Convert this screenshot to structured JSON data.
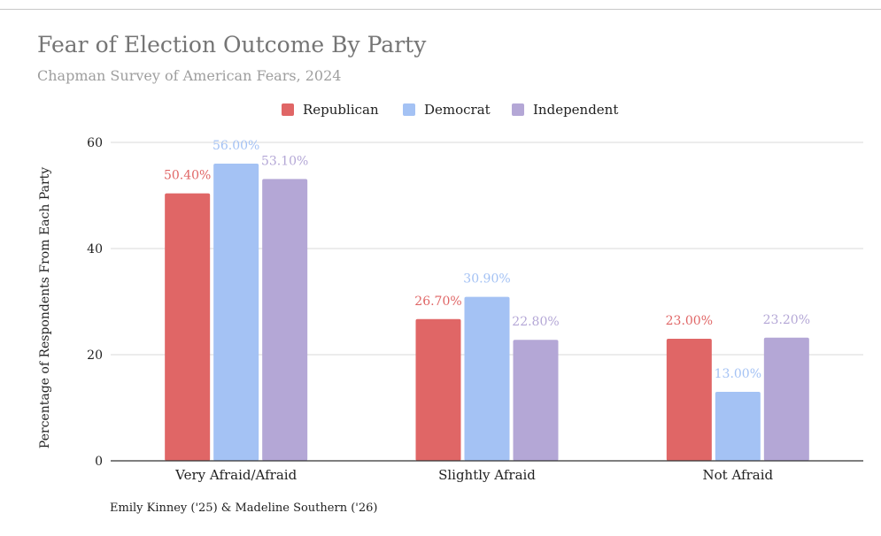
{
  "chart_data": {
    "type": "bar",
    "title": "Fear of Election Outcome By Party",
    "subtitle": "Chapman Survey of American Fears, 2024",
    "xlabel": "",
    "ylabel": "Percentage of Respondents From Each Party",
    "categories": [
      "Very Afraid/Afraid",
      "Slightly Afraid",
      "Not Afraid"
    ],
    "series": [
      {
        "name": "Republican",
        "color": "#e06666",
        "values": [
          50.4,
          26.7,
          23.0
        ],
        "labels": [
          "50.40%",
          "26.70%",
          "23.00%"
        ]
      },
      {
        "name": "Democrat",
        "color": "#a4c2f4",
        "values": [
          56.0,
          30.9,
          13.0
        ],
        "labels": [
          "56.00%",
          "30.90%",
          "13.00%"
        ]
      },
      {
        "name": "Independent",
        "color": "#b4a7d6",
        "values": [
          53.1,
          22.8,
          23.2
        ],
        "labels": [
          "53.10%",
          "22.80%",
          "23.20%"
        ]
      }
    ],
    "ylim": [
      0,
      60
    ],
    "yticks": [
      0,
      20,
      40,
      60
    ],
    "grid": true,
    "legend_position": "top-center"
  },
  "footer": "Emily Kinney ('25) & Madeline Southern ('26)"
}
